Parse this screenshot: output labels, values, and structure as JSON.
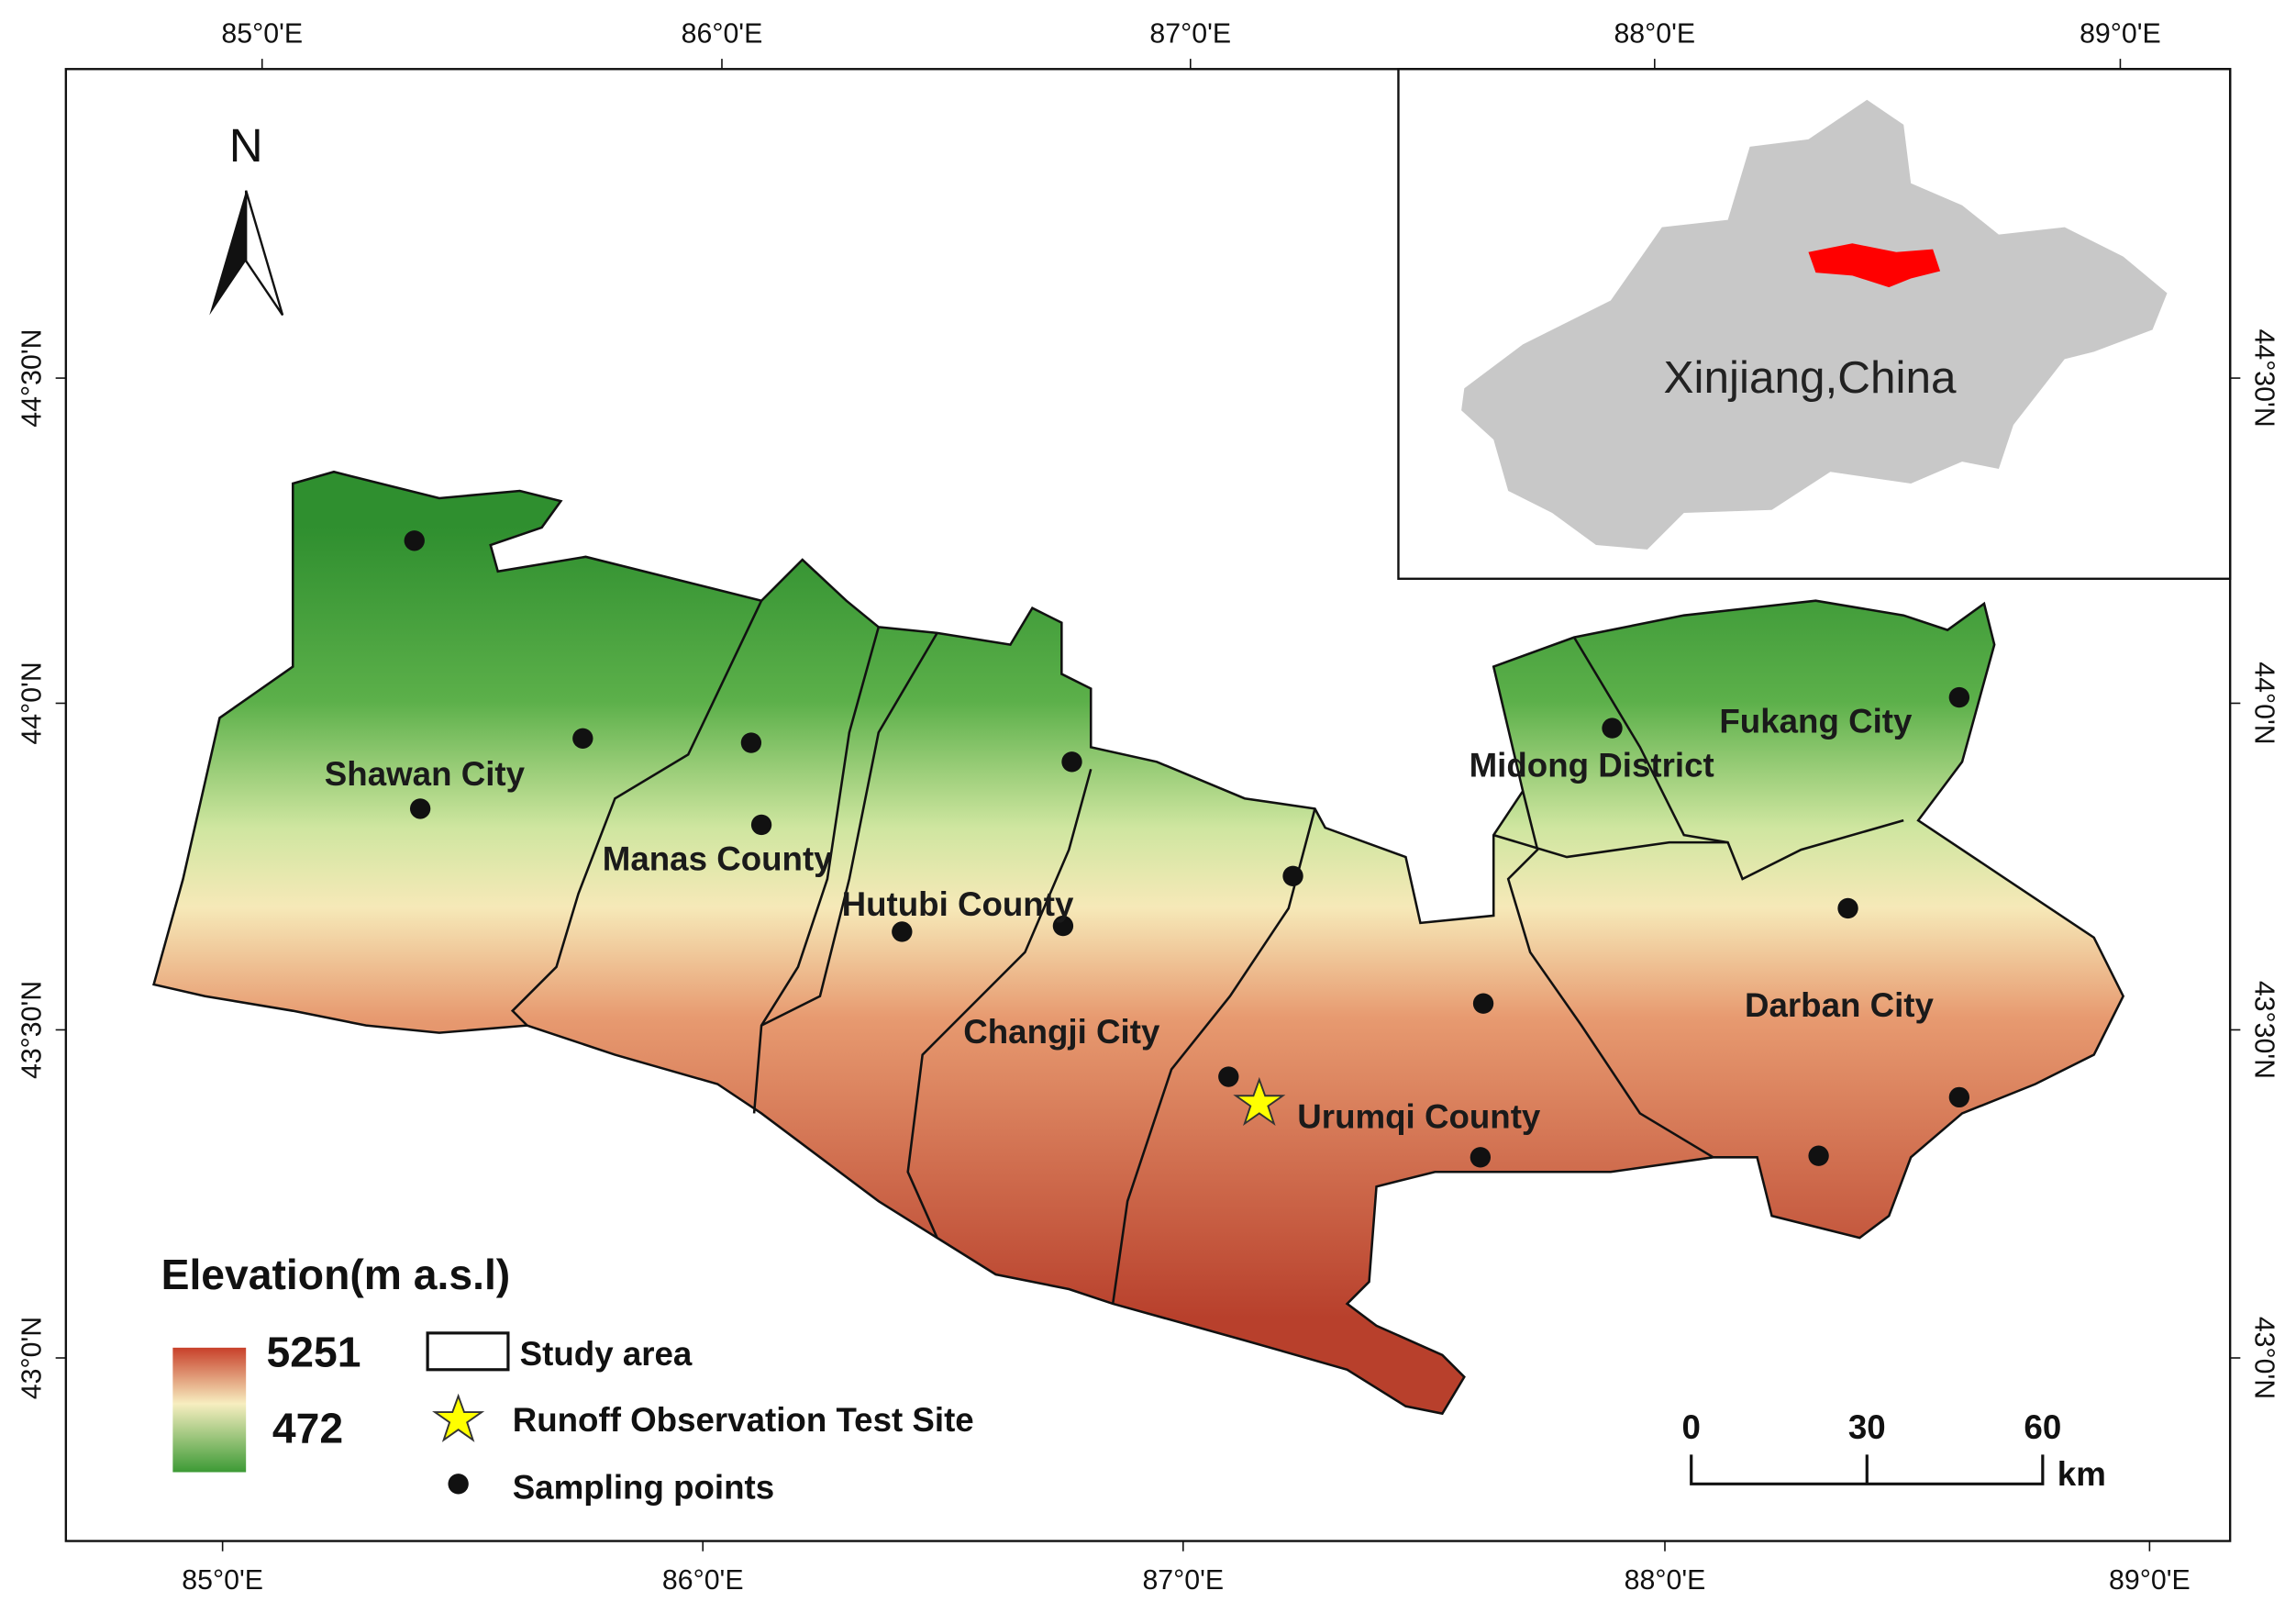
{
  "map": {
    "longitude_labels_top": [
      "85°0'E",
      "86°0'E",
      "87°0'E",
      "88°0'E",
      "89°0'E"
    ],
    "longitude_labels_bottom": [
      "85°0'E",
      "86°0'E",
      "87°0'E",
      "88°0'E",
      "89°0'E"
    ],
    "latitude_labels_left": [
      "44°30'N",
      "44°0'N",
      "43°30'N",
      "43°0'N"
    ],
    "latitude_labels_right": [
      "44°30'N",
      "44°0'N",
      "43°30'N",
      "43°0'N"
    ],
    "north_label": "N",
    "inset_label": "Xinjiang,China",
    "places": [
      "Shawan City",
      "Manas County",
      "Hutubi County",
      "Changji City",
      "Urumqi County",
      "Midong District",
      "Fukang City",
      "Darban City"
    ],
    "legend": {
      "title": "Elevation(m a.s.l)",
      "elevation_max": 5251,
      "elevation_min": 472,
      "items": [
        "Study area",
        "Runoff Observation Test Site",
        "Sampling points"
      ]
    },
    "scale_bar": {
      "ticks": [
        0,
        30,
        60
      ],
      "unit": "km"
    }
  }
}
